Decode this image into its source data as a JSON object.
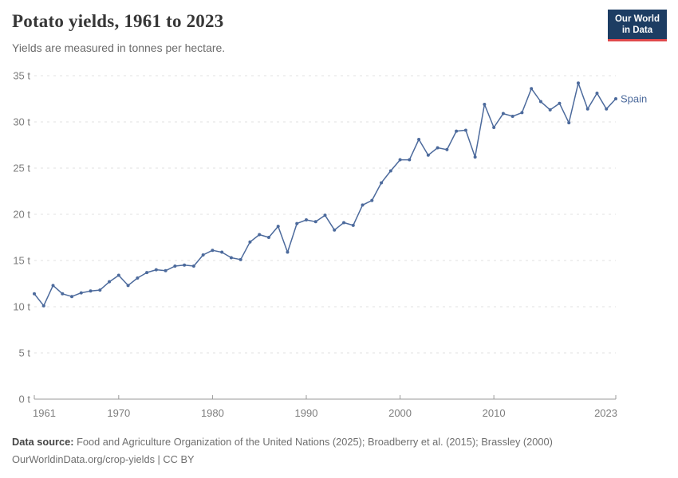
{
  "header": {
    "title": "Potato yields, 1961 to 2023",
    "subtitle": "Yields are measured in tonnes per hectare."
  },
  "logo": {
    "line1": "Our World",
    "line2": "in Data",
    "bg_color": "#1d3d63",
    "accent_color": "#e0494c"
  },
  "chart_data": {
    "type": "line",
    "title": "Potato yields, 1961 to 2023",
    "unit": "t",
    "ylabel": "",
    "xlabel": "",
    "ylim": [
      0,
      35
    ],
    "yticks": [
      0,
      5,
      10,
      15,
      20,
      25,
      30,
      35
    ],
    "xticks": [
      1961,
      1970,
      1980,
      1990,
      2000,
      2010,
      2023
    ],
    "grid": "dashed",
    "legend_position": "end-of-line",
    "x": [
      1961,
      1962,
      1963,
      1964,
      1965,
      1966,
      1967,
      1968,
      1969,
      1970,
      1971,
      1972,
      1973,
      1974,
      1975,
      1976,
      1977,
      1978,
      1979,
      1980,
      1981,
      1982,
      1983,
      1984,
      1985,
      1986,
      1987,
      1988,
      1989,
      1990,
      1991,
      1992,
      1993,
      1994,
      1995,
      1996,
      1997,
      1998,
      1999,
      2000,
      2001,
      2002,
      2003,
      2004,
      2005,
      2006,
      2007,
      2008,
      2009,
      2010,
      2011,
      2012,
      2013,
      2014,
      2015,
      2016,
      2017,
      2018,
      2019,
      2020,
      2021,
      2022,
      2023
    ],
    "series": [
      {
        "name": "Spain",
        "color": "#4C6A9C",
        "values": [
          11.4,
          10.1,
          12.3,
          11.4,
          11.1,
          11.5,
          11.7,
          11.8,
          12.7,
          13.4,
          12.3,
          13.1,
          13.7,
          14.0,
          13.9,
          14.4,
          14.5,
          14.4,
          15.6,
          16.1,
          15.9,
          15.3,
          15.1,
          17.0,
          17.8,
          17.5,
          18.7,
          15.9,
          19.0,
          19.4,
          19.2,
          19.9,
          18.3,
          19.1,
          18.8,
          21.0,
          21.5,
          23.4,
          24.7,
          25.9,
          25.9,
          28.1,
          26.4,
          27.2,
          27.0,
          29.0,
          29.1,
          26.2,
          31.9,
          29.4,
          30.9,
          30.6,
          31.0,
          33.6,
          32.2,
          31.3,
          32.0,
          29.9,
          34.2,
          31.4,
          33.1,
          31.4,
          32.5
        ]
      }
    ],
    "axis_color": "#9a9a9a",
    "grid_color": "#e2e2e2",
    "tick_label_color": "#7d7d7d"
  },
  "footer": {
    "source_label": "Data source:",
    "source_text": " Food and Agriculture Organization of the United Nations (2025); Broadberry et al. (2015); Brassley (2000)",
    "link_line": "OurWorldinData.org/crop-yields | CC BY"
  }
}
